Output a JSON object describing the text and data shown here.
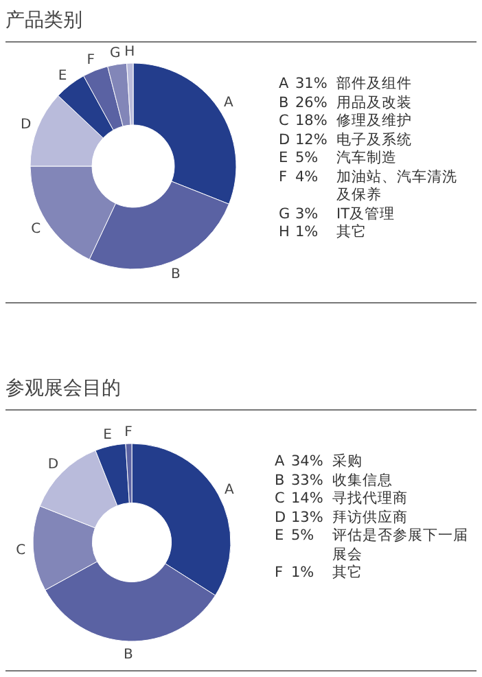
{
  "chart_data": [
    {
      "type": "donut",
      "title": "产品类别",
      "categories": [
        "A",
        "B",
        "C",
        "D",
        "E",
        "F",
        "G",
        "H"
      ],
      "values": [
        31,
        26,
        18,
        12,
        5,
        4,
        3,
        1
      ],
      "colors": [
        "#233d8c",
        "#5a62a3",
        "#8286b8",
        "#b9bbdb",
        "#233d8c",
        "#5a62a3",
        "#8286b8",
        "#b9bbdb"
      ],
      "annotations": [
        "A 31% 部件及组件",
        "B 26% 用品及改装",
        "C 18% 修理及维护",
        "D 12% 电子及系统",
        "E 5% 汽车制造",
        "F 4% 加油站、汽车清洗及保养",
        "G 3% IT及管理",
        "H 1% 其它"
      ]
    },
    {
      "type": "donut",
      "title": "参观展会目的",
      "categories": [
        "A",
        "B",
        "C",
        "D",
        "E",
        "F"
      ],
      "values": [
        34,
        33,
        14,
        13,
        5,
        1
      ],
      "colors": [
        "#233d8c",
        "#5a62a3",
        "#8286b8",
        "#b9bbdb",
        "#233d8c",
        "#5a62a3"
      ],
      "annotations": [
        "A 34% 采购",
        "B 33% 收集信息",
        "C 14% 寻找代理商",
        "D 13% 拜访供应商",
        "E 5% 评估是否参展下一届展会",
        "F 1% 其它"
      ]
    }
  ]
}
